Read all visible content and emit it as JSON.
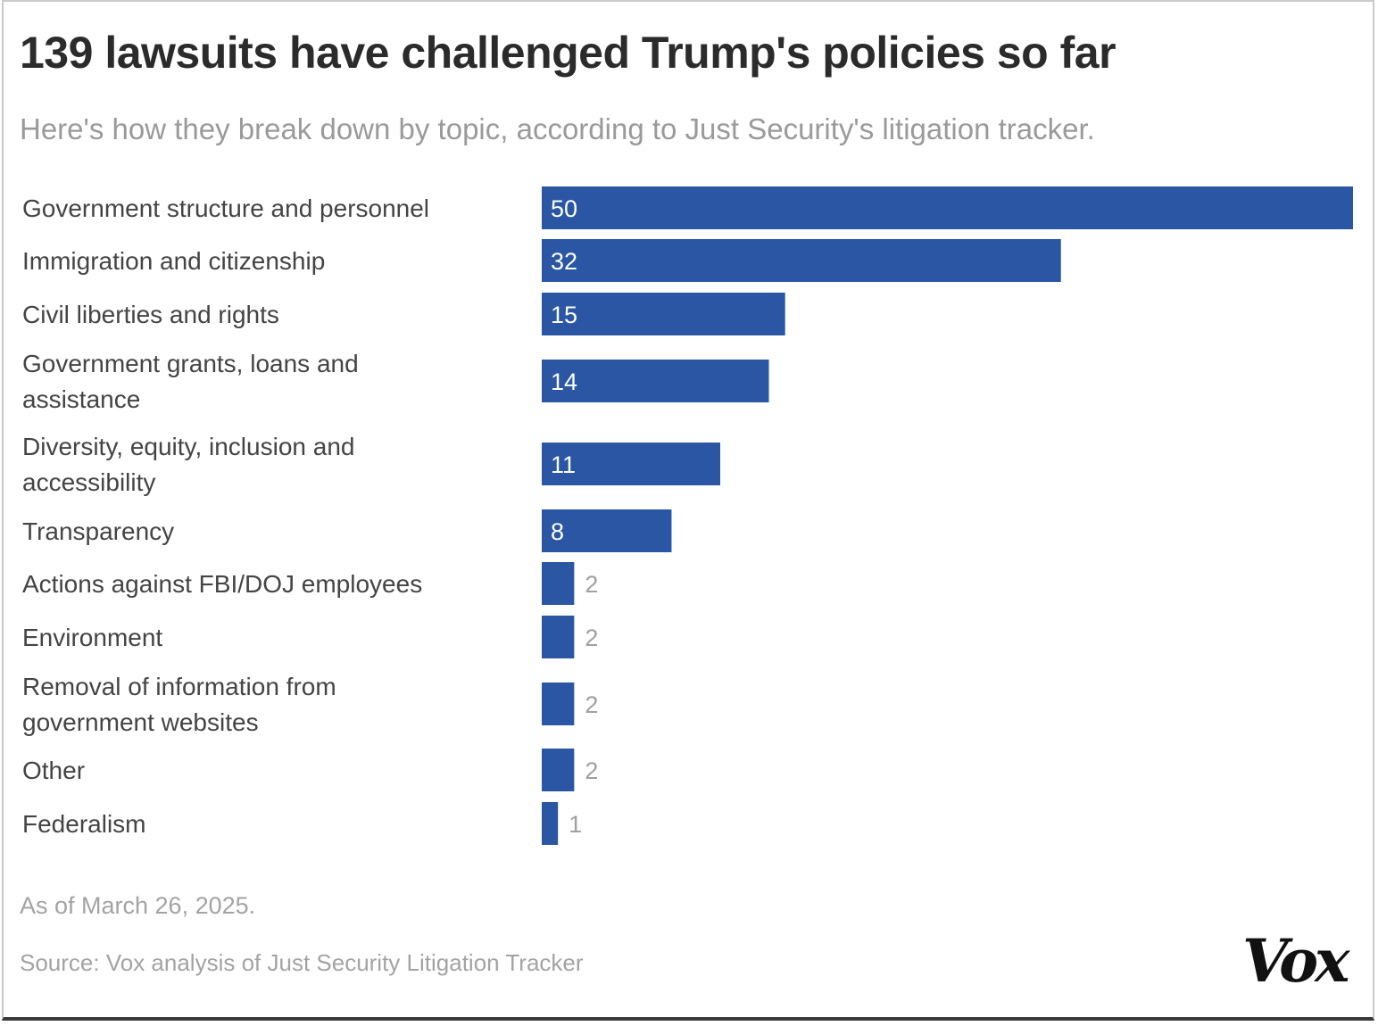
{
  "title": "139 lawsuits have challenged Trump's policies so far",
  "subtitle": "Here's how they break down by topic, according to Just Security's litigation tracker.",
  "note": "As of March 26, 2025.",
  "source": "Source: Vox analysis of Just Security Litigation Tracker",
  "logo": "Vox",
  "colors": {
    "bar": "#2a56a4",
    "text": "#444444",
    "muted": "#a0a0a0"
  },
  "chart_data": {
    "type": "bar",
    "orientation": "horizontal",
    "categories": [
      [
        "Government structure and personnel"
      ],
      [
        "Immigration and citizenship"
      ],
      [
        "Civil liberties and rights"
      ],
      [
        "Government grants, loans and",
        "assistance"
      ],
      [
        "Diversity, equity, inclusion and",
        "accessibility"
      ],
      [
        "Transparency"
      ],
      [
        "Actions against FBI/DOJ employees"
      ],
      [
        "Environment"
      ],
      [
        "Removal of information from",
        "government websites"
      ],
      [
        "Other"
      ],
      [
        "Federalism"
      ]
    ],
    "values": [
      50,
      32,
      15,
      14,
      11,
      8,
      2,
      2,
      2,
      2,
      1
    ],
    "xlim": [
      0,
      50
    ],
    "grid": false,
    "legend": "none",
    "data_labels": true
  }
}
